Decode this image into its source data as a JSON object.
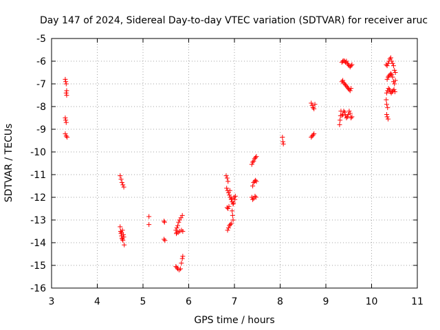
{
  "chart_data": {
    "type": "scatter",
    "title": "Day 147 of 2024, Sidereal Day-to-day VTEC variation (SDTVAR) for receiver aruc",
    "xlabel": "GPS time / hours",
    "ylabel": "SDTVAR / TECUs",
    "xlim": [
      3,
      11
    ],
    "ylim": [
      -16,
      -5
    ],
    "xticks": [
      "3",
      "4",
      "5",
      "6",
      "7",
      "8",
      "9",
      "10",
      "11"
    ],
    "yticks": [
      "-5",
      "-6",
      "-7",
      "-8",
      "-9",
      "-10",
      "-11",
      "-12",
      "-13",
      "-14",
      "-15",
      "-16"
    ],
    "grid": true,
    "marker": "+",
    "series": [
      {
        "name": "SDTVAR",
        "color": "#ff0000",
        "points": [
          [
            3.3,
            -6.8
          ],
          [
            3.31,
            -6.9
          ],
          [
            3.32,
            -7.0
          ],
          [
            3.33,
            -7.3
          ],
          [
            3.32,
            -7.4
          ],
          [
            3.33,
            -7.5
          ],
          [
            3.3,
            -8.5
          ],
          [
            3.31,
            -8.6
          ],
          [
            3.32,
            -8.7
          ],
          [
            3.3,
            -9.2
          ],
          [
            3.32,
            -9.3
          ],
          [
            3.34,
            -9.35
          ],
          [
            4.5,
            -11.05
          ],
          [
            4.52,
            -11.2
          ],
          [
            4.54,
            -11.35
          ],
          [
            4.56,
            -11.45
          ],
          [
            4.58,
            -11.55
          ],
          [
            4.5,
            -13.3
          ],
          [
            4.51,
            -13.5
          ],
          [
            4.52,
            -13.6
          ],
          [
            4.53,
            -13.7
          ],
          [
            4.54,
            -13.8
          ],
          [
            4.55,
            -13.85
          ],
          [
            4.56,
            -13.9
          ],
          [
            4.57,
            -13.65
          ],
          [
            4.58,
            -13.75
          ],
          [
            4.59,
            -14.1
          ],
          [
            4.53,
            -13.55
          ],
          [
            4.55,
            -13.45
          ],
          [
            5.13,
            -12.85
          ],
          [
            5.13,
            -13.2
          ],
          [
            5.46,
            -13.05
          ],
          [
            5.47,
            -13.1
          ],
          [
            5.46,
            -13.85
          ],
          [
            5.48,
            -13.9
          ],
          [
            5.72,
            -13.45
          ],
          [
            5.74,
            -13.35
          ],
          [
            5.76,
            -13.25
          ],
          [
            5.78,
            -13.1
          ],
          [
            5.8,
            -13.0
          ],
          [
            5.83,
            -12.9
          ],
          [
            5.86,
            -12.8
          ],
          [
            5.74,
            -13.55
          ],
          [
            5.77,
            -13.55
          ],
          [
            5.8,
            -13.5
          ],
          [
            5.84,
            -13.45
          ],
          [
            5.87,
            -13.5
          ],
          [
            5.72,
            -15.05
          ],
          [
            5.74,
            -15.1
          ],
          [
            5.76,
            -15.15
          ],
          [
            5.79,
            -15.2
          ],
          [
            5.82,
            -15.15
          ],
          [
            5.84,
            -14.9
          ],
          [
            5.86,
            -14.7
          ],
          [
            5.87,
            -14.6
          ],
          [
            5.73,
            -13.6
          ],
          [
            6.82,
            -11.05
          ],
          [
            6.84,
            -11.15
          ],
          [
            6.86,
            -11.3
          ],
          [
            6.83,
            -11.6
          ],
          [
            6.85,
            -11.7
          ],
          [
            6.87,
            -11.8
          ],
          [
            6.89,
            -11.9
          ],
          [
            6.91,
            -12.0
          ],
          [
            6.93,
            -12.1
          ],
          [
            6.95,
            -12.2
          ],
          [
            6.97,
            -12.3
          ],
          [
            6.99,
            -12.0
          ],
          [
            7.01,
            -12.1
          ],
          [
            7.02,
            -11.95
          ],
          [
            6.9,
            -11.7
          ],
          [
            6.88,
            -12.4
          ],
          [
            6.86,
            -12.5
          ],
          [
            6.84,
            -12.45
          ],
          [
            6.95,
            -12.6
          ],
          [
            6.96,
            -12.8
          ],
          [
            6.97,
            -13.0
          ],
          [
            6.85,
            -13.45
          ],
          [
            6.87,
            -13.35
          ],
          [
            6.89,
            -13.25
          ],
          [
            6.91,
            -13.2
          ],
          [
            6.93,
            -13.15
          ],
          [
            6.94,
            -12.05
          ],
          [
            6.98,
            -12.25
          ],
          [
            7.38,
            -10.55
          ],
          [
            7.4,
            -10.45
          ],
          [
            7.42,
            -10.4
          ],
          [
            7.44,
            -10.3
          ],
          [
            7.46,
            -10.25
          ],
          [
            7.48,
            -10.2
          ],
          [
            7.4,
            -11.5
          ],
          [
            7.42,
            -11.35
          ],
          [
            7.44,
            -11.3
          ],
          [
            7.46,
            -11.25
          ],
          [
            7.48,
            -11.3
          ],
          [
            7.38,
            -12.0
          ],
          [
            7.4,
            -12.1
          ],
          [
            7.42,
            -12.05
          ],
          [
            7.45,
            -11.95
          ],
          [
            7.47,
            -12.0
          ],
          [
            8.05,
            -9.35
          ],
          [
            8.06,
            -9.55
          ],
          [
            8.07,
            -9.65
          ],
          [
            8.68,
            -7.85
          ],
          [
            8.7,
            -7.95
          ],
          [
            8.72,
            -8.05
          ],
          [
            8.74,
            -8.1
          ],
          [
            8.76,
            -7.9
          ],
          [
            8.68,
            -9.35
          ],
          [
            8.7,
            -9.3
          ],
          [
            8.72,
            -9.25
          ],
          [
            8.74,
            -9.2
          ],
          [
            9.3,
            -8.8
          ],
          [
            9.31,
            -8.6
          ],
          [
            9.32,
            -8.4
          ],
          [
            9.33,
            -8.2
          ],
          [
            9.35,
            -6.05
          ],
          [
            9.37,
            -6.0
          ],
          [
            9.39,
            -5.98
          ],
          [
            9.41,
            -6.0
          ],
          [
            9.43,
            -6.05
          ],
          [
            9.45,
            -6.0
          ],
          [
            9.47,
            -6.1
          ],
          [
            9.49,
            -6.15
          ],
          [
            9.51,
            -6.2
          ],
          [
            9.53,
            -6.25
          ],
          [
            9.55,
            -6.2
          ],
          [
            9.57,
            -6.15
          ],
          [
            9.35,
            -6.9
          ],
          [
            9.37,
            -6.85
          ],
          [
            9.39,
            -6.95
          ],
          [
            9.41,
            -7.0
          ],
          [
            9.43,
            -7.05
          ],
          [
            9.45,
            -7.1
          ],
          [
            9.47,
            -7.15
          ],
          [
            9.49,
            -7.2
          ],
          [
            9.51,
            -7.25
          ],
          [
            9.53,
            -7.3
          ],
          [
            9.55,
            -7.2
          ],
          [
            9.35,
            -8.4
          ],
          [
            9.37,
            -8.35
          ],
          [
            9.39,
            -8.2
          ],
          [
            9.41,
            -8.25
          ],
          [
            9.43,
            -8.4
          ],
          [
            9.45,
            -8.5
          ],
          [
            9.47,
            -8.45
          ],
          [
            9.49,
            -8.35
          ],
          [
            9.51,
            -8.2
          ],
          [
            9.53,
            -8.3
          ],
          [
            9.55,
            -8.5
          ],
          [
            9.57,
            -8.45
          ],
          [
            10.32,
            -6.15
          ],
          [
            10.34,
            -6.2
          ],
          [
            10.36,
            -6.1
          ],
          [
            10.38,
            -6.0
          ],
          [
            10.4,
            -5.9
          ],
          [
            10.42,
            -5.85
          ],
          [
            10.44,
            -6.0
          ],
          [
            10.46,
            -6.1
          ],
          [
            10.48,
            -6.2
          ],
          [
            10.5,
            -6.4
          ],
          [
            10.52,
            -6.5
          ],
          [
            10.34,
            -6.8
          ],
          [
            10.36,
            -6.7
          ],
          [
            10.38,
            -6.65
          ],
          [
            10.4,
            -6.6
          ],
          [
            10.42,
            -6.55
          ],
          [
            10.44,
            -6.6
          ],
          [
            10.46,
            -6.7
          ],
          [
            10.48,
            -6.9
          ],
          [
            10.5,
            -7.0
          ],
          [
            10.52,
            -6.85
          ],
          [
            10.33,
            -7.4
          ],
          [
            10.35,
            -7.3
          ],
          [
            10.37,
            -7.2
          ],
          [
            10.39,
            -7.25
          ],
          [
            10.41,
            -7.35
          ],
          [
            10.43,
            -7.4
          ],
          [
            10.45,
            -7.35
          ],
          [
            10.47,
            -7.3
          ],
          [
            10.49,
            -7.25
          ],
          [
            10.51,
            -7.35
          ],
          [
            10.32,
            -7.7
          ],
          [
            10.33,
            -7.9
          ],
          [
            10.35,
            -8.05
          ],
          [
            10.33,
            -8.35
          ],
          [
            10.34,
            -8.45
          ],
          [
            10.36,
            -8.55
          ]
        ]
      }
    ]
  }
}
